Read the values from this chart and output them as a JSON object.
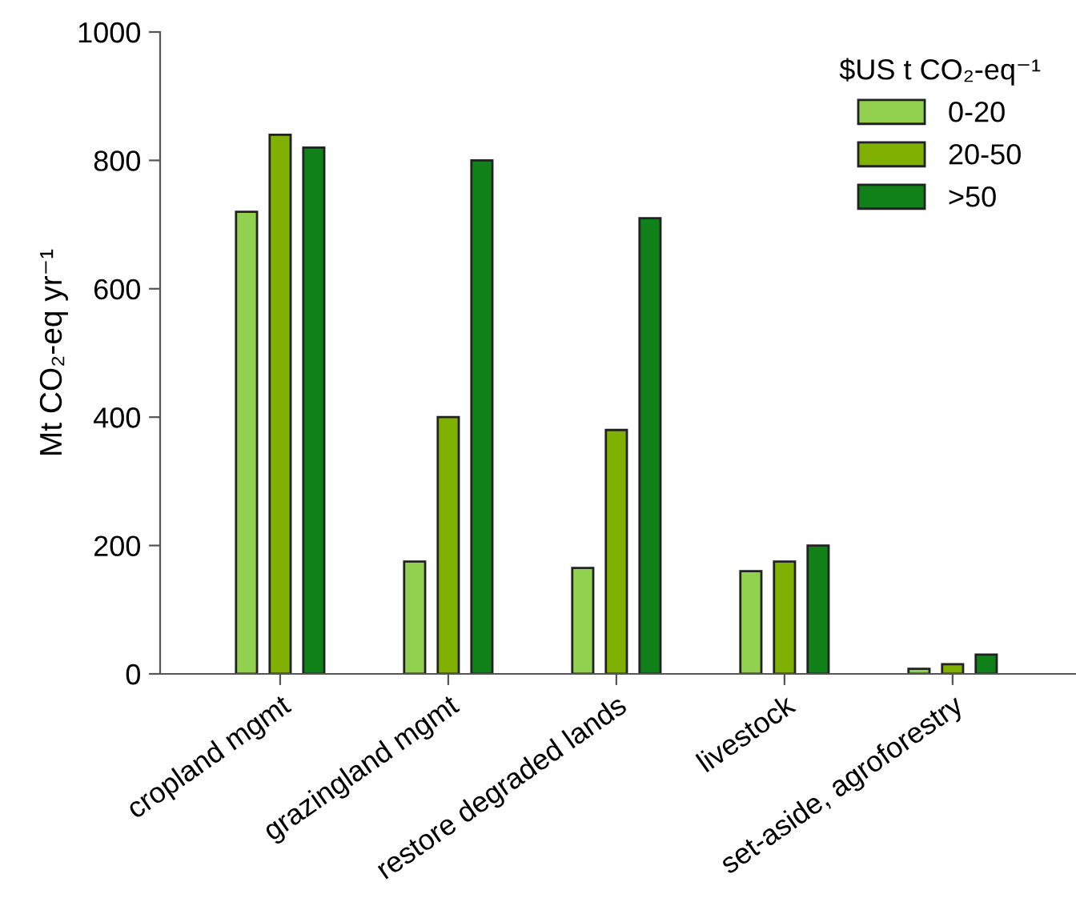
{
  "chart_data": {
    "type": "bar",
    "ylabel": "Mt CO₂-eq yr⁻¹",
    "legend_title": "$US t CO₂-eq⁻¹",
    "categories": [
      "cropland mgmt",
      "grazingland mgmt",
      "restore degraded lands",
      "livestock",
      "set-aside, agroforestry"
    ],
    "series": [
      {
        "name": "0-20",
        "color": "#92d050",
        "values": [
          720,
          175,
          165,
          160,
          8
        ]
      },
      {
        "name": "20-50",
        "color": "#80b000",
        "values": [
          840,
          400,
          380,
          175,
          15
        ]
      },
      {
        "name": ">50",
        "color": "#108018",
        "values": [
          820,
          800,
          710,
          200,
          30
        ]
      }
    ],
    "ylim": [
      0,
      1000
    ],
    "yticks": [
      0,
      200,
      400,
      600,
      800,
      1000
    ],
    "grid": false,
    "legend": "top right"
  }
}
